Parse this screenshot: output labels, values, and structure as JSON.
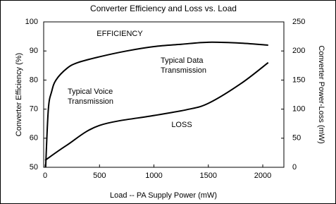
{
  "chart_data": {
    "type": "line",
    "title": "Converter Efficiency and Loss vs. Load",
    "x_label": "Load  -- PA Supply Power (mW)",
    "y_label": "Converter Efficiency (%)",
    "y2_label": "Converter Power-Loss (mW)",
    "annotations": [
      "Typical Data",
      "Transmission",
      "Typical Voice",
      "Transmission"
    ],
    "xlim": [
      -13,
      2194
    ],
    "xticks": [
      0,
      500,
      1000,
      1500,
      2000
    ],
    "ylim": [
      50,
      100
    ],
    "yticks": [
      50,
      60,
      70,
      80,
      90,
      100
    ],
    "y2lim": [
      0,
      250
    ],
    "y2ticks": [
      0,
      50,
      100,
      150,
      200,
      250
    ],
    "grid": false,
    "series": [
      {
        "name": "EFFICIENCY",
        "color": "#000000",
        "x": [
          5,
          30,
          60,
          100,
          200,
          300,
          500,
          750,
          1000,
          1250,
          1500,
          1800,
          2050
        ],
        "values": [
          50,
          70,
          76,
          80,
          84,
          86,
          88,
          90,
          91.5,
          92.3,
          93,
          92.7,
          92
        ]
      },
      {
        "name": "LOSS",
        "color": "#000000",
        "axis": "y2",
        "x": [
          0,
          200,
          500,
          1000,
          1300,
          1500,
          1800,
          2050
        ],
        "values": [
          12,
          38,
          72,
          89,
          99,
          110,
          144,
          180
        ]
      }
    ]
  }
}
